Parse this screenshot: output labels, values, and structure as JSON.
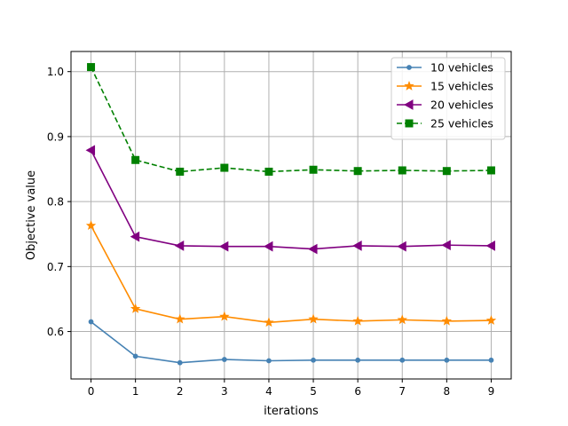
{
  "chart_data": {
    "type": "line",
    "title": "",
    "xlabel": "iterations",
    "ylabel": "Objective value",
    "x": [
      0,
      1,
      2,
      3,
      4,
      5,
      6,
      7,
      8,
      9
    ],
    "xlim": [
      -0.45,
      9.45
    ],
    "ylim": [
      0.527,
      1.031
    ],
    "xticks": [
      0,
      1,
      2,
      3,
      4,
      5,
      6,
      7,
      8,
      9
    ],
    "yticks": [
      0.6,
      0.7,
      0.8,
      0.9,
      1.0
    ],
    "ytick_labels": [
      "0.6",
      "0.7",
      "0.8",
      "0.9",
      "1.0"
    ],
    "grid": true,
    "legend_position": "top-right",
    "series": [
      {
        "name": "10 vehicles",
        "color": "#4682b4",
        "marker": "point",
        "dash": "solid",
        "values": [
          0.615,
          0.562,
          0.552,
          0.557,
          0.555,
          0.556,
          0.556,
          0.556,
          0.556,
          0.556
        ]
      },
      {
        "name": "15 vehicles",
        "color": "#ff8c00",
        "marker": "star",
        "dash": "solid",
        "values": [
          0.763,
          0.635,
          0.619,
          0.623,
          0.614,
          0.619,
          0.616,
          0.618,
          0.616,
          0.617
        ]
      },
      {
        "name": "20 vehicles",
        "color": "#800080",
        "marker": "triangle-left",
        "dash": "solid",
        "values": [
          0.879,
          0.746,
          0.732,
          0.731,
          0.731,
          0.727,
          0.732,
          0.731,
          0.733,
          0.732
        ]
      },
      {
        "name": "25 vehicles",
        "color": "#008000",
        "marker": "square",
        "dash": "dashed",
        "values": [
          1.007,
          0.864,
          0.846,
          0.852,
          0.846,
          0.849,
          0.847,
          0.848,
          0.847,
          0.848
        ]
      }
    ]
  }
}
